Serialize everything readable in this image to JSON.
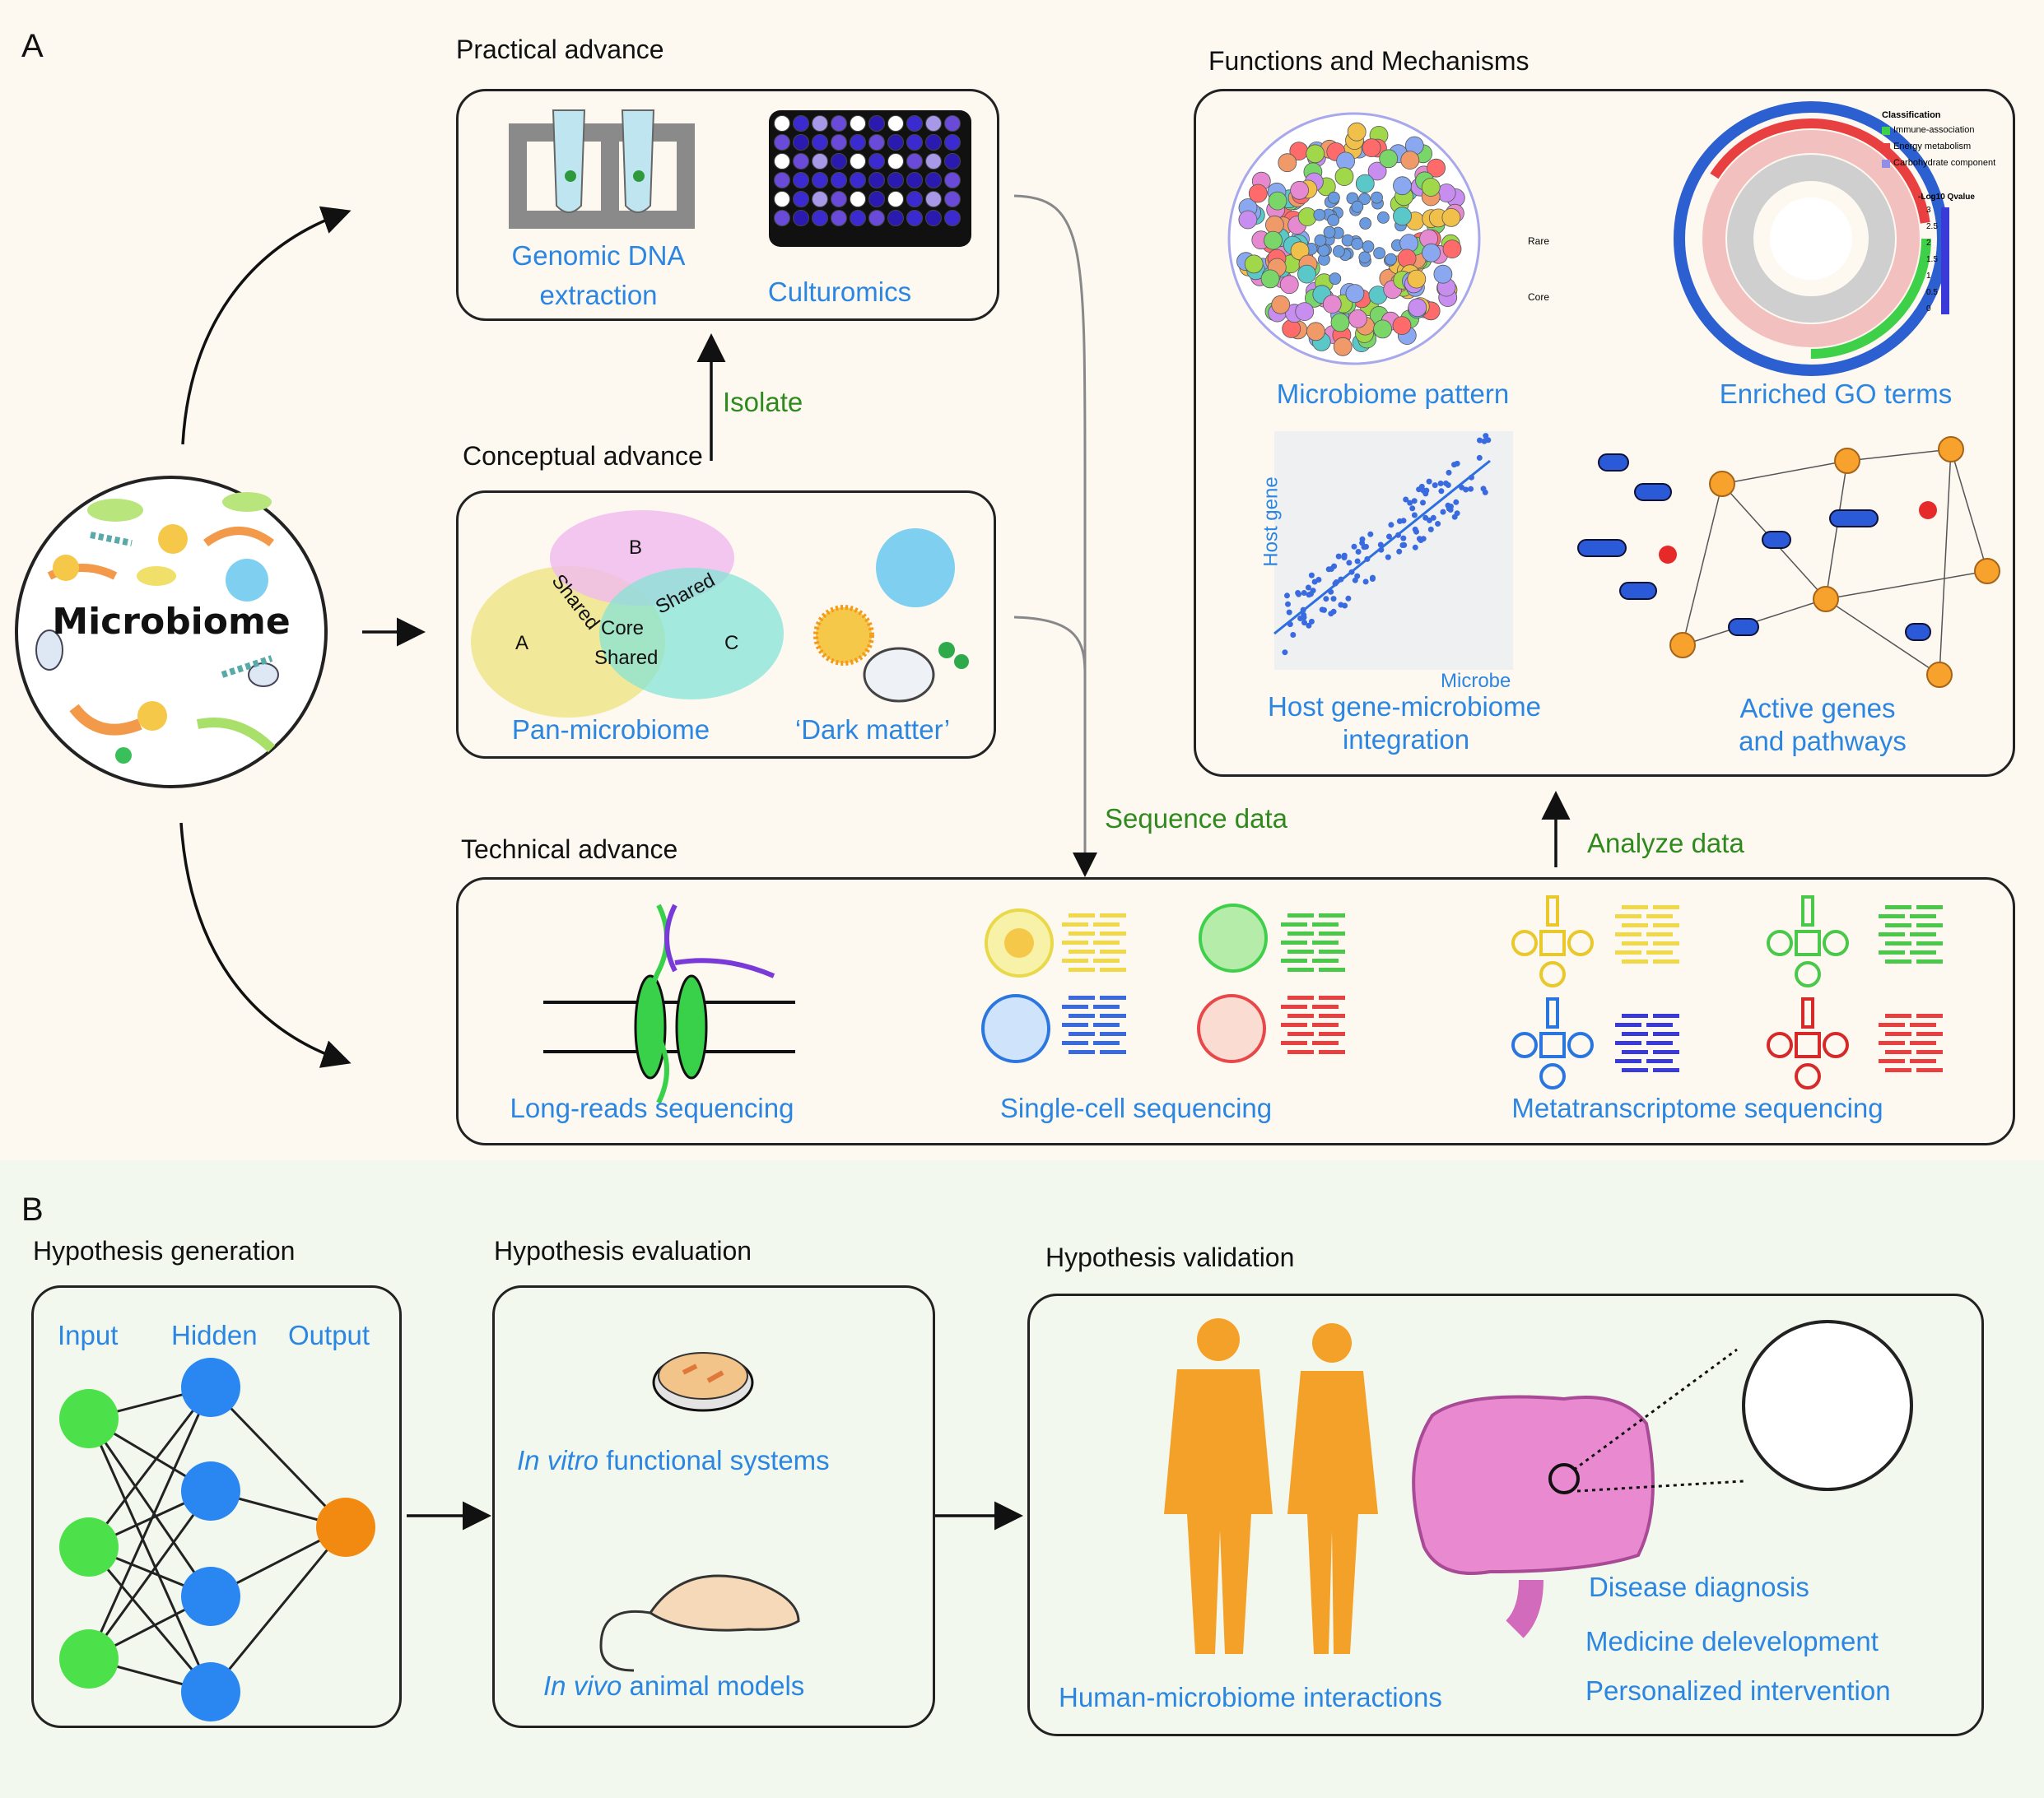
{
  "panels": {
    "a": {
      "label": "A",
      "microbiome_label": "Microbiome",
      "practical": {
        "title": "Practical advance",
        "genomic_dna": [
          "Genomic DNA",
          "extraction"
        ],
        "culturomics": "Culturomics"
      },
      "isolate_label": "Isolate",
      "conceptual": {
        "title": "Conceptual advance",
        "venn": {
          "a": "A",
          "b": "B",
          "c": "C",
          "core": "Core",
          "shared_left": "Shared",
          "shared_right": "Shared",
          "shared_bottom": "Shared"
        },
        "pan_microbiome": "Pan-microbiome",
        "dark_matter": "‘Dark matter’"
      },
      "sequence_data_label": "Sequence data",
      "technical": {
        "title": "Technical advance",
        "long_reads": "Long-reads sequencing",
        "single_cell": "Single-cell sequencing",
        "metatranscriptome": "Metatranscriptome sequencing"
      },
      "analyze_data_label": "Analyze data",
      "functions": {
        "title": "Functions and Mechanisms",
        "microbiome_pattern": "Microbiome pattern",
        "enriched_go": "Enriched GO terms",
        "host_gene_axis": "Host gene",
        "microbe_axis": "Microbe",
        "host_gene_integration": [
          "Host gene-microbiome",
          "integration"
        ],
        "active_genes": [
          "Active genes",
          "and pathways"
        ],
        "pattern_legend": {
          "rare": "Rare",
          "core": "Core"
        },
        "go_legend": {
          "classification": "Classification",
          "items": [
            "Immune-association",
            "Energy metabolism",
            "Carbohydrate component"
          ],
          "qvalue_title": "-Log10 Qvalue",
          "ticks": [
            "3",
            "2.5",
            "2",
            "1.5",
            "1",
            "0.5",
            "0"
          ]
        }
      }
    },
    "b": {
      "label": "B",
      "generation": {
        "title": "Hypothesis generation",
        "input": "Input",
        "hidden": "Hidden",
        "output": "Output"
      },
      "evaluation": {
        "title": "Hypothesis evaluation",
        "in_vitro_italic": "In vitro",
        "in_vitro_rest": " functional systems",
        "in_vivo_italic": "In vivo",
        "in_vivo_rest": " animal models"
      },
      "validation": {
        "title": "Hypothesis validation",
        "human_microbiome": "Human-microbiome interactions",
        "disease": "Disease diagnosis",
        "medicine": "Medicine delevelopment",
        "personalized": "Personalized intervention"
      }
    }
  },
  "colors": {
    "accent_blue": "#2b86e2",
    "accent_green": "#2f8a1e",
    "body_orange": "#f4a12a"
  }
}
